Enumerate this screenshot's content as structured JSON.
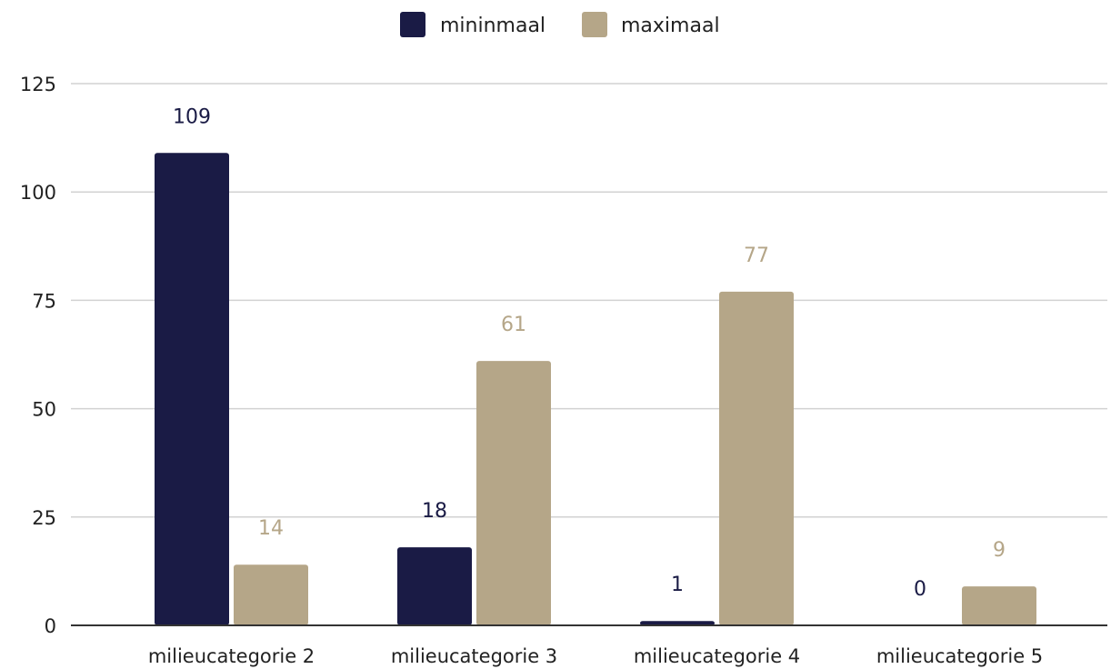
{
  "chart_data": {
    "type": "bar",
    "categories": [
      "milieucategorie 2",
      "milieucategorie 3",
      "milieucategorie 4",
      "milieucategorie 5"
    ],
    "series": [
      {
        "name": "mininmaal",
        "values": [
          109,
          18,
          1,
          0
        ],
        "color": "#1a1b45"
      },
      {
        "name": "maximaal",
        "values": [
          14,
          61,
          77,
          9
        ],
        "color": "#b5a688"
      }
    ],
    "ylim": [
      0,
      125
    ],
    "yticks": [
      0,
      25,
      50,
      75,
      100,
      125
    ],
    "grid": true,
    "legend_position": "top-center",
    "data_labels": true
  }
}
